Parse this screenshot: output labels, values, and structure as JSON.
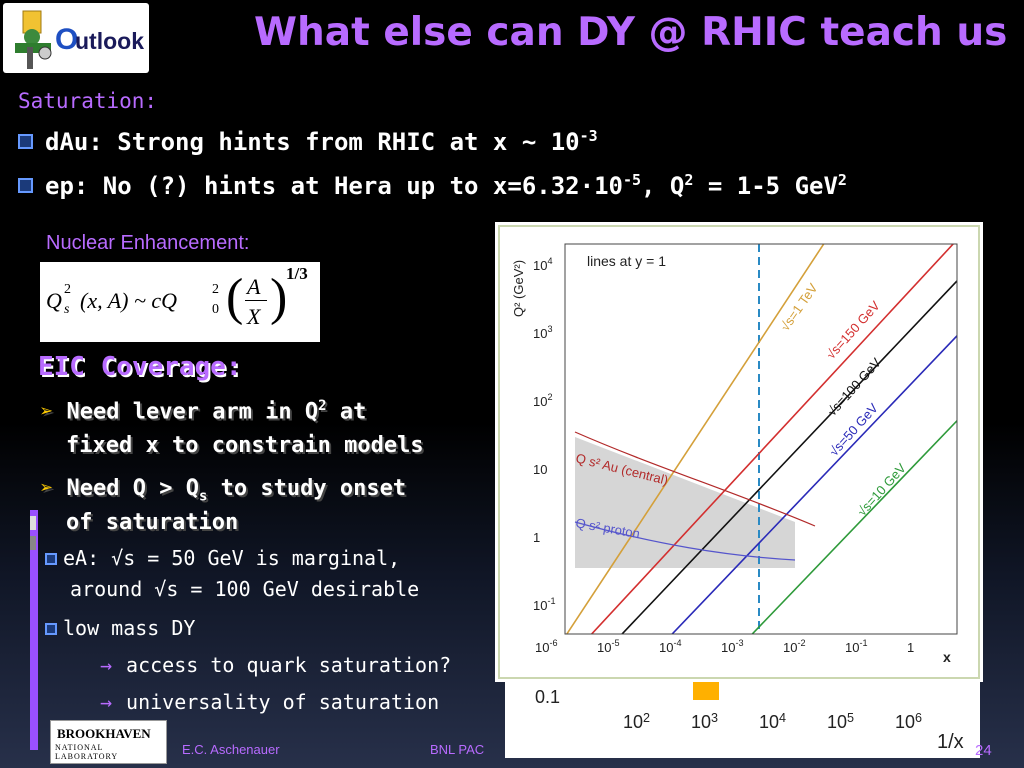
{
  "logo": {
    "text_o": "O",
    "text_rest": "utlook"
  },
  "title": "What else can DY @ RHIC teach us",
  "saturation_label": "Saturation:",
  "bullets": [
    {
      "pre": "dAu: Strong hints from RHIC at x ~ 10",
      "sup": "-3"
    },
    {
      "pre": "ep: No (?) hints at Hera up to x=6.32·10",
      "sup": "-5",
      "mid": ", Q",
      "sup2": "2",
      "post": " = 1-5 GeV",
      "sup3": "2"
    }
  ],
  "nuclear_label": "Nuclear Enhancement:",
  "formula": {
    "lhs": "Q",
    "lhs_sup": "2",
    "lhs_sub": "s",
    "args": "(x, A) ~ cQ",
    "q0_sup": "2",
    "q0_sub": "0",
    "num": "A",
    "den": "X",
    "power": "1/3"
  },
  "eic": {
    "title": "EIC Coverage:",
    "items": [
      {
        "pre": "Need lever arm in Q",
        "sup": "2",
        "post": " at",
        "line2": "fixed x to constrain models"
      },
      {
        "pre": "Need Q > Q",
        "sub": "s",
        "post": " to study onset",
        "line2": "of saturation"
      }
    ],
    "sub_items": [
      {
        "line1": "eA: √s = 50 GeV is marginal,",
        "line2": "around √s = 100 GeV desirable"
      },
      {
        "line1": "low mass DY"
      }
    ],
    "arrow_items": [
      "access to quark saturation?",
      "universality of saturation"
    ]
  },
  "plot": {
    "yaxis_label": "Q² (GeV²)",
    "legend": "lines at y = 1",
    "yticks": [
      {
        "b": "10",
        "e": "4"
      },
      {
        "b": "10",
        "e": "3"
      },
      {
        "b": "10",
        "e": "2"
      },
      {
        "b": "10",
        "e": ""
      },
      {
        "b": "1",
        "e": ""
      },
      {
        "b": "10",
        "e": "-1"
      }
    ],
    "xticks": [
      {
        "b": "10",
        "e": "-6"
      },
      {
        "b": "10",
        "e": "-5"
      },
      {
        "b": "10",
        "e": "-4"
      },
      {
        "b": "10",
        "e": "-3"
      },
      {
        "b": "10",
        "e": "-2"
      },
      {
        "b": "10",
        "e": "-1"
      },
      {
        "b": "1",
        "e": ""
      }
    ],
    "xaxis_label": "x",
    "line_labels": [
      "√s=1 TeV",
      "√s=150 GeV",
      "√s=100 GeV",
      "√s=50 GeV",
      "√s=10 GeV"
    ],
    "band_au": "Q s² Au (central)",
    "band_p": "Q s² proton",
    "colors": {
      "tev": "#d4a03a",
      "g150": "#d32f2f",
      "g100": "#111111",
      "g50": "#2a2ab8",
      "g10": "#2e9a3a",
      "dash": "#2a8ac4"
    }
  },
  "plot2": {
    "ytick": "0.1",
    "xticks": [
      {
        "b": "10",
        "e": "2"
      },
      {
        "b": "10",
        "e": "3"
      },
      {
        "b": "10",
        "e": "4"
      },
      {
        "b": "10",
        "e": "5"
      },
      {
        "b": "10",
        "e": "6"
      }
    ],
    "xlabel": "1/x"
  },
  "footer": {
    "bnl_name": "BROOKHAVEN",
    "bnl_sub": "NATIONAL LABORATORY",
    "author": "E.C. Aschenauer",
    "event": "BNL PAC",
    "page": "24"
  }
}
